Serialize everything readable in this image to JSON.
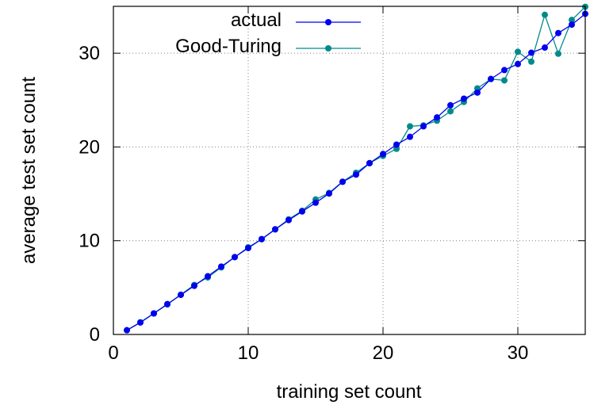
{
  "chart_data": {
    "type": "line",
    "title": "",
    "xlabel": "training set count",
    "ylabel": "average test set count",
    "xlim": [
      0,
      35
    ],
    "ylim": [
      0,
      35
    ],
    "xticks": [
      0,
      10,
      20,
      30
    ],
    "yticks": [
      0,
      10,
      20,
      30
    ],
    "grid": true,
    "legend_position": "top-left",
    "x": [
      1,
      2,
      3,
      4,
      5,
      6,
      7,
      8,
      9,
      10,
      11,
      12,
      13,
      14,
      15,
      16,
      17,
      18,
      19,
      20,
      21,
      22,
      23,
      24,
      25,
      26,
      27,
      28,
      29,
      30,
      31,
      32,
      33,
      34,
      35
    ],
    "series": [
      {
        "name": "actual",
        "color": "#0000ee",
        "values": [
          0.45,
          1.27,
          2.24,
          3.24,
          4.22,
          5.19,
          6.21,
          7.24,
          8.25,
          9.22,
          10.18,
          11.22,
          12.2,
          13.12,
          14.05,
          15.03,
          16.28,
          17.05,
          18.27,
          19.25,
          20.25,
          21.08,
          22.2,
          23.15,
          24.45,
          25.15,
          25.8,
          27.25,
          28.2,
          28.85,
          30.05,
          30.6,
          32.15,
          33.05,
          34.2
        ]
      },
      {
        "name": "Good-Turing",
        "color": "#008b8b",
        "values": [
          0.45,
          1.3,
          2.25,
          3.2,
          4.25,
          5.28,
          6.08,
          7.15,
          8.25,
          9.3,
          10.15,
          11.2,
          12.28,
          13.2,
          14.4,
          15.1,
          16.3,
          17.25,
          18.28,
          19.05,
          19.8,
          22.2,
          22.3,
          22.8,
          23.8,
          24.8,
          26.25,
          27.25,
          27.1,
          30.15,
          29.1,
          34.1,
          29.95,
          33.55,
          34.95
        ]
      }
    ]
  }
}
